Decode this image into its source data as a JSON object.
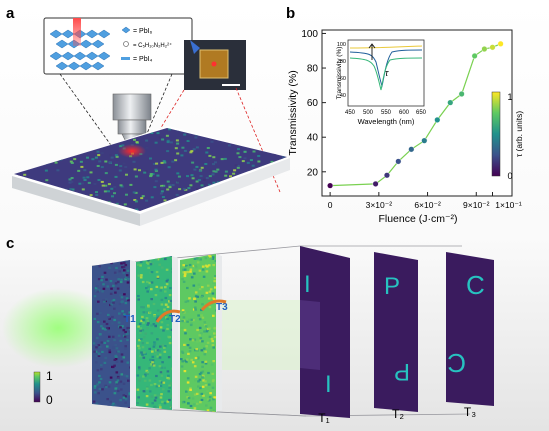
{
  "panels": {
    "a": {
      "label": "a",
      "legend": [
        {
          "symbol": "dot-blue",
          "text": "= PbI₆"
        },
        {
          "symbol": "ring",
          "text": "= C₅H₁₀N₂H₂²⁺"
        },
        {
          "symbol": "dash",
          "text": "= PbI₄"
        }
      ]
    },
    "b": {
      "label": "b",
      "colorbar_label": "τ (arb. units)",
      "colorbar_ticks": [
        "1",
        "0"
      ],
      "inset": {
        "xlabel": "Wavelength (nm)",
        "ylabel": "Transmissivity (%)",
        "xticks": [
          "450",
          "500",
          "550",
          "600",
          "650"
        ],
        "yticks": [
          "100",
          "80",
          "60",
          "40"
        ],
        "annotation": "τ"
      }
    },
    "c": {
      "label": "c",
      "colorbar_ticks": [
        "1",
        "0"
      ],
      "screen_labels": [
        "T1",
        "T2",
        "T3"
      ],
      "detector_labels": [
        "T₁",
        "T₂",
        "T₃"
      ],
      "letters": [
        "I",
        "P",
        "C"
      ]
    }
  },
  "chart_data": {
    "type": "scatter",
    "xlabel": "Fluence  (J·cm⁻²)",
    "ylabel": "Transmissivity (%)",
    "xticks": [
      "0",
      "3×10⁻²",
      "6×10⁻²",
      "9×10⁻²",
      "1×10⁻¹"
    ],
    "yticks": [
      "100",
      "80",
      "60",
      "40",
      "20"
    ],
    "xlim": [
      -0.005,
      0.112
    ],
    "ylim": [
      6,
      102
    ],
    "colormap": "viridis",
    "points": [
      {
        "x": 0.0,
        "y": 12
      },
      {
        "x": 0.028,
        "y": 13
      },
      {
        "x": 0.035,
        "y": 18
      },
      {
        "x": 0.042,
        "y": 26
      },
      {
        "x": 0.05,
        "y": 33
      },
      {
        "x": 0.058,
        "y": 38
      },
      {
        "x": 0.066,
        "y": 50
      },
      {
        "x": 0.074,
        "y": 60
      },
      {
        "x": 0.081,
        "y": 65
      },
      {
        "x": 0.089,
        "y": 87
      },
      {
        "x": 0.095,
        "y": 91
      },
      {
        "x": 0.1,
        "y": 92
      },
      {
        "x": 0.105,
        "y": 94
      }
    ]
  }
}
